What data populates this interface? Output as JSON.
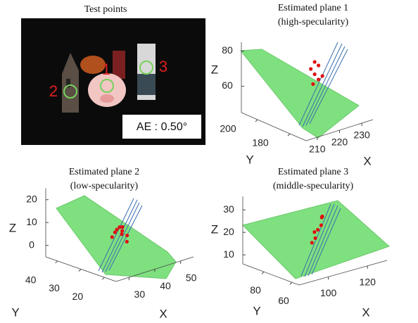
{
  "image": {
    "title": "Test points",
    "markers": [
      "1",
      "2",
      "3"
    ],
    "annotation": "AE : 0.50°"
  },
  "chart_data": [
    {
      "type": "scatter3d",
      "title": "Estimated plane 1",
      "subtitle": "(high-specularity)",
      "xlabel": "X",
      "ylabel": "Y",
      "zlabel": "Z",
      "xlim": [
        205,
        235
      ],
      "ylim": [
        170,
        210
      ],
      "zlim": [
        45,
        85
      ],
      "xticks": [
        210,
        220,
        230
      ],
      "yticks": [
        180,
        200
      ],
      "zticks": [
        60,
        80
      ],
      "color": "#dd1111",
      "x": [
        227,
        228,
        226,
        227,
        229,
        228,
        227
      ],
      "y": [
        195,
        194,
        196,
        195,
        193,
        194,
        196
      ],
      "z": [
        71,
        69,
        67,
        64,
        63,
        61,
        58
      ]
    },
    {
      "type": "scatter3d",
      "title": "Estimated plane 2",
      "subtitle": "(low-specularity)",
      "xlabel": "X",
      "ylabel": "Y",
      "zlabel": "Z",
      "xlim": [
        25,
        55
      ],
      "ylim": [
        15,
        45
      ],
      "zlim": [
        -5,
        25
      ],
      "xticks": [
        30,
        40,
        50
      ],
      "yticks": [
        20,
        30,
        40
      ],
      "zticks": [
        0,
        10,
        20
      ],
      "color": "#dd1111",
      "x": [
        38,
        40,
        42,
        39,
        41,
        40,
        42,
        38,
        41
      ],
      "y": [
        29,
        30,
        31,
        28,
        30,
        32,
        29,
        31,
        28
      ],
      "z": [
        8,
        8,
        7,
        6,
        6,
        5,
        4,
        4,
        2
      ]
    },
    {
      "type": "scatter3d",
      "title": "Estimated plane 3",
      "subtitle": "(middle-specularity)",
      "xlabel": "X",
      "ylabel": "Y",
      "zlabel": "Z",
      "xlim": [
        85,
        130
      ],
      "ylim": [
        55,
        95
      ],
      "zlim": [
        6,
        36
      ],
      "xticks": [
        100,
        120
      ],
      "yticks": [
        60,
        80
      ],
      "zticks": [
        10,
        20,
        30
      ],
      "color": "#dd1111",
      "x": [
        111,
        112,
        110,
        109,
        108,
        107,
        106
      ],
      "y": [
        75,
        76,
        74,
        75,
        76,
        74,
        75
      ],
      "z": [
        25,
        25,
        22,
        20,
        19,
        17,
        15
      ]
    }
  ]
}
